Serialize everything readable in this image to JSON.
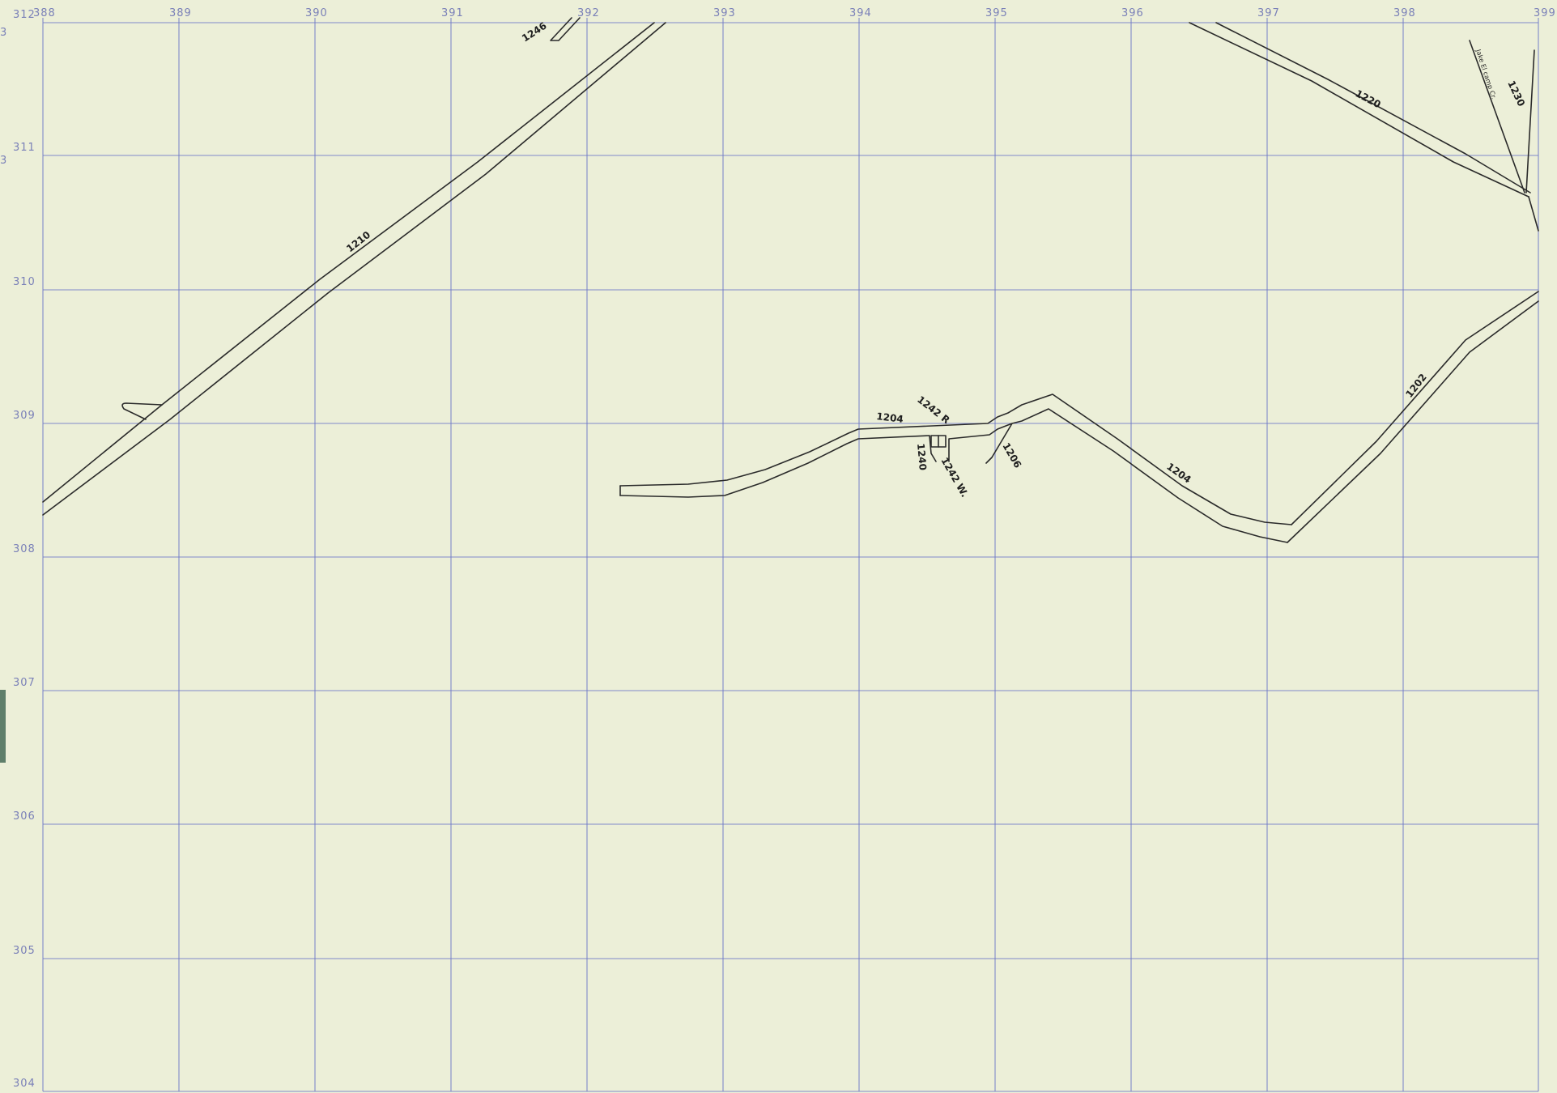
{
  "map": {
    "grid_x_labels": [
      "388",
      "389",
      "390",
      "391",
      "392",
      "393",
      "394",
      "395",
      "396",
      "397",
      "398",
      "399"
    ],
    "grid_y_labels": [
      "312",
      "311",
      "310",
      "309",
      "308",
      "307",
      "306",
      "305",
      "304"
    ],
    "edge_marks": [
      "3",
      "3"
    ],
    "road_labels": {
      "r1246": "1246",
      "r1210": "1210",
      "r1220": "1220",
      "r1230": "1230",
      "r_small": "Jake El camp Cr.",
      "r1242r": "1242 R",
      "r1204a": "1204",
      "r1240": "1240",
      "r1242w": "1242 W.",
      "r1206": "1206",
      "r1204b": "1204",
      "r1202": "1202"
    }
  },
  "colors": {
    "paper": "#ecefd8",
    "grid": "#6f78c8",
    "road": "#2a2a2a"
  }
}
